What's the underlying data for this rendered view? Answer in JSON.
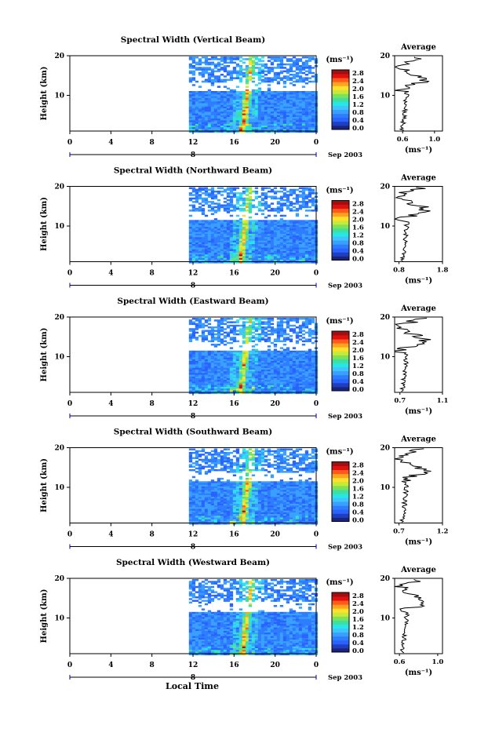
{
  "figure": {
    "xlabel": "Local Time",
    "cbar_unit": "(ms⁻¹)",
    "avg_title": "Average",
    "date_label": "Sep 2003",
    "day_marker": "8"
  },
  "chart_data": [
    {
      "type": "heatmap",
      "title": "Spectral Width (Vertical Beam)",
      "ylabel": "Height (km)",
      "x_ticks": [
        "0",
        "4",
        "8",
        "12",
        "16",
        "20",
        "0"
      ],
      "xlim": [
        0,
        24
      ],
      "y_ticks": [
        "10",
        "20"
      ],
      "ylim": [
        1,
        20
      ],
      "data_start_hour": 11.6,
      "intense_hour": 17.0,
      "gap_heights_km": [
        [
          11.5,
          13.5
        ]
      ],
      "colorbar": {
        "ticks": [
          "2.8",
          "2.4",
          "2.0",
          "1.6",
          "1.2",
          "0.8",
          "0.4",
          "0.0"
        ],
        "range": [
          0.0,
          3.0
        ]
      },
      "average_profile": {
        "x_ticks": [
          "0.6",
          "1.0"
        ],
        "xlim": [
          0.5,
          1.1
        ],
        "y_ticks": [
          "10",
          "20"
        ],
        "ylim": [
          1,
          20
        ]
      }
    },
    {
      "type": "heatmap",
      "title": "Spectral Width (Northward Beam)",
      "ylabel": "Height (km)",
      "x_ticks": [
        "0",
        "4",
        "8",
        "12",
        "16",
        "20",
        "0"
      ],
      "xlim": [
        0,
        24
      ],
      "y_ticks": [
        "10",
        "20"
      ],
      "ylim": [
        1,
        20
      ],
      "data_start_hour": 11.6,
      "intense_hour": 16.8,
      "gap_heights_km": [
        [
          11.8,
          14.0
        ]
      ],
      "colorbar": {
        "ticks": [
          "2.8",
          "2.4",
          "2.0",
          "1.6",
          "1.2",
          "0.8",
          "0.4",
          "0.0"
        ],
        "range": [
          0.0,
          3.0
        ]
      },
      "average_profile": {
        "x_ticks": [
          "0.8",
          "1.8"
        ],
        "xlim": [
          0.7,
          1.8
        ],
        "y_ticks": [
          "10",
          "20"
        ],
        "ylim": [
          1,
          20
        ]
      }
    },
    {
      "type": "heatmap",
      "title": "Spectral Width (Eastward Beam)",
      "ylabel": "Height (km)",
      "x_ticks": [
        "0",
        "4",
        "8",
        "12",
        "16",
        "20",
        "0"
      ],
      "xlim": [
        0,
        24
      ],
      "y_ticks": [
        "10",
        "20"
      ],
      "ylim": [
        1,
        20
      ],
      "data_start_hour": 11.6,
      "intense_hour": 16.8,
      "gap_heights_km": [
        [
          11.8,
          13.8
        ]
      ],
      "colorbar": {
        "ticks": [
          "2.8",
          "2.4",
          "2.0",
          "1.6",
          "1.2",
          "0.8",
          "0.4",
          "0.0"
        ],
        "range": [
          0.0,
          3.0
        ]
      },
      "average_profile": {
        "x_ticks": [
          "0.7",
          "1.1"
        ],
        "xlim": [
          0.65,
          1.1
        ],
        "y_ticks": [
          "10",
          "20"
        ],
        "ylim": [
          1,
          20
        ]
      }
    },
    {
      "type": "heatmap",
      "title": "Spectral Width (Southward Beam)",
      "ylabel": "Height (km)",
      "x_ticks": [
        "0",
        "4",
        "8",
        "12",
        "16",
        "20",
        "0"
      ],
      "xlim": [
        0,
        24
      ],
      "y_ticks": [
        "10",
        "20"
      ],
      "ylim": [
        1,
        20
      ],
      "data_start_hour": 11.6,
      "intense_hour": 17.0,
      "gap_heights_km": [
        [
          11.8,
          14.0
        ]
      ],
      "colorbar": {
        "ticks": [
          "2.8",
          "2.4",
          "2.0",
          "1.6",
          "1.2",
          "0.8",
          "0.4",
          "0.0"
        ],
        "range": [
          0.0,
          3.0
        ]
      },
      "average_profile": {
        "x_ticks": [
          "0.7",
          "1.2"
        ],
        "xlim": [
          0.65,
          1.2
        ],
        "y_ticks": [
          "10",
          "20"
        ],
        "ylim": [
          1,
          20
        ]
      }
    },
    {
      "type": "heatmap",
      "title": "Spectral Width (Westward Beam)",
      "ylabel": "Height (km)",
      "x_ticks": [
        "0",
        "4",
        "8",
        "12",
        "16",
        "20",
        "0"
      ],
      "xlim": [
        0,
        24
      ],
      "y_ticks": [
        "10",
        "20"
      ],
      "ylim": [
        1,
        20
      ],
      "data_start_hour": 11.6,
      "intense_hour": 17.0,
      "gap_heights_km": [
        [
          11.8,
          14.2
        ]
      ],
      "colorbar": {
        "ticks": [
          "2.8",
          "2.4",
          "2.0",
          "1.6",
          "1.2",
          "0.8",
          "0.4",
          "0.0"
        ],
        "range": [
          0.0,
          3.0
        ]
      },
      "average_profile": {
        "x_ticks": [
          "0.6",
          "1.0"
        ],
        "xlim": [
          0.55,
          1.05
        ],
        "y_ticks": [
          "10",
          "20"
        ],
        "ylim": [
          1,
          20
        ]
      }
    }
  ]
}
